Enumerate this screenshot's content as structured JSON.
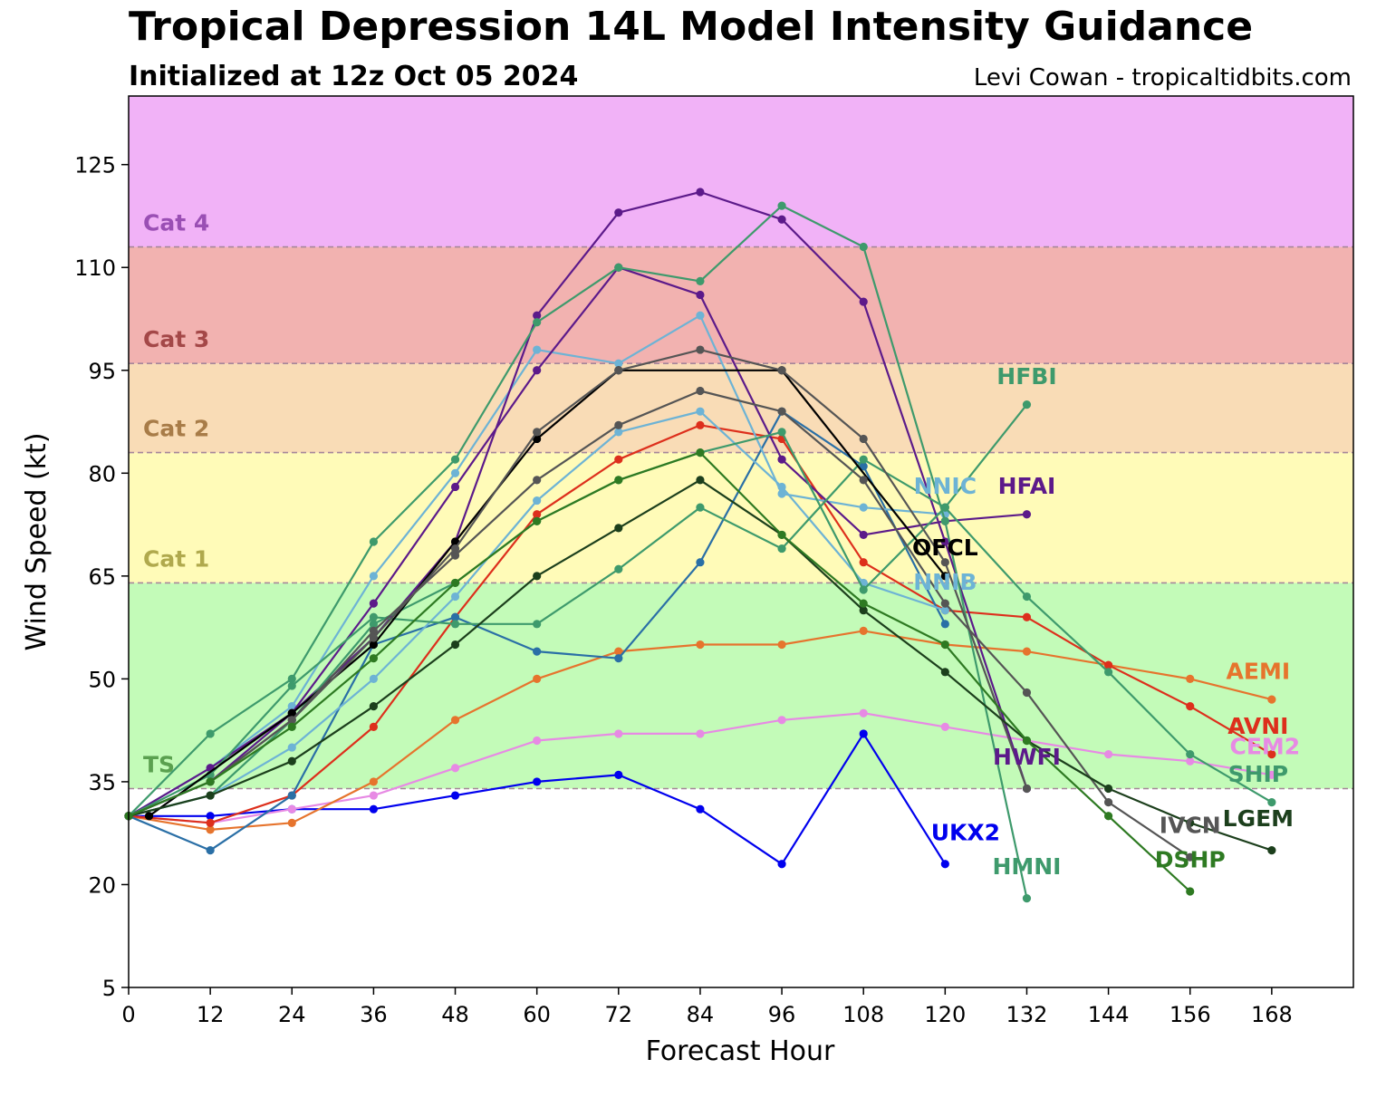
{
  "header": {
    "title": "Tropical Depression 14L Model Intensity Guidance",
    "subtitle": "Initialized at 12z Oct 05 2024",
    "credit": "Levi Cowan - tropicaltidbits.com"
  },
  "chart_data": {
    "type": "line",
    "title": "Tropical Depression 14L Model Intensity Guidance",
    "subtitle": "Initialized at 12z Oct 05 2024",
    "xlabel": "Forecast Hour",
    "ylabel": "Wind Speed (kt)",
    "xlim": [
      0,
      180
    ],
    "ylim": [
      5,
      135
    ],
    "xticks": [
      0,
      12,
      24,
      36,
      48,
      60,
      72,
      84,
      96,
      108,
      120,
      132,
      144,
      156,
      168
    ],
    "yticks": [
      5,
      20,
      35,
      50,
      65,
      80,
      95,
      110,
      125
    ],
    "grid": false,
    "bands": [
      {
        "label": "",
        "from": 5,
        "to": 34,
        "color": "#ffffff",
        "label_color": "#000000"
      },
      {
        "label": "TS",
        "from": 34,
        "to": 64,
        "color": "#c3fbb8",
        "label_color": "#5aa04f"
      },
      {
        "label": "Cat 1",
        "from": 64,
        "to": 83,
        "color": "#fffbb8",
        "label_color": "#b0a94d"
      },
      {
        "label": "Cat 2",
        "from": 83,
        "to": 96,
        "color": "#f9dcb6",
        "label_color": "#a87c48"
      },
      {
        "label": "Cat 3",
        "from": 96,
        "to": 113,
        "color": "#f2b2b0",
        "label_color": "#a44848"
      },
      {
        "label": "Cat 4",
        "from": 113,
        "to": 135,
        "color": "#f1b2f7",
        "label_color": "#9a4fb4"
      }
    ],
    "series": [
      {
        "name": "UKX2",
        "color": "#0000ee",
        "label_at": [
          123,
          26.5
        ],
        "x": [
          0,
          12,
          24,
          36,
          48,
          60,
          72,
          84,
          96,
          108,
          120
        ],
        "y": [
          30,
          30,
          31,
          31,
          33,
          35,
          36,
          31,
          23,
          42,
          23
        ]
      },
      {
        "name": "CEM2",
        "color": "#e78ae4",
        "label_at": [
          167,
          39
        ],
        "x": [
          0,
          12,
          24,
          36,
          48,
          60,
          72,
          84,
          96,
          108,
          120,
          144,
          156,
          168
        ],
        "y": [
          30,
          29,
          31,
          33,
          37,
          41,
          42,
          42,
          44,
          45,
          43,
          39,
          38,
          36
        ]
      },
      {
        "name": "AEMI",
        "color": "#e6742d",
        "label_at": [
          166,
          50
        ],
        "x": [
          0,
          12,
          24,
          36,
          48,
          60,
          72,
          84,
          96,
          108,
          120,
          132,
          144,
          156,
          168
        ],
        "y": [
          30,
          28,
          29,
          35,
          44,
          50,
          54,
          55,
          55,
          57,
          55,
          54,
          52,
          50,
          47
        ]
      },
      {
        "name": "AVNI",
        "color": "#dd2f1c",
        "label_at": [
          166,
          42
        ],
        "x": [
          0,
          12,
          24,
          36,
          48,
          60,
          72,
          84,
          96,
          108,
          120,
          132,
          144,
          156,
          168
        ],
        "y": [
          30,
          29,
          33,
          43,
          59,
          74,
          82,
          87,
          85,
          67,
          60,
          59,
          52,
          46,
          39
        ]
      },
      {
        "name": "",
        "color": "#2a6fa6",
        "x": [
          0,
          12,
          24,
          36,
          48,
          60,
          72,
          84,
          96,
          108,
          120
        ],
        "y": [
          30,
          25,
          33,
          55,
          59,
          54,
          53,
          67,
          89,
          81,
          58
        ]
      },
      {
        "name": "NNIC",
        "color": "#6db3d5",
        "label_at": [
          120,
          77
        ],
        "x": [
          0,
          12,
          24,
          36,
          48,
          60,
          72,
          84,
          96,
          108,
          120
        ],
        "y": [
          30,
          37,
          46,
          65,
          80,
          98,
          96,
          103,
          77,
          75,
          74
        ]
      },
      {
        "name": "NNIB",
        "color": "#6db3d5",
        "label_at": [
          120,
          63
        ],
        "x": [
          0,
          12,
          24,
          36,
          48,
          60,
          72,
          84,
          96,
          108,
          120
        ],
        "y": [
          30,
          33,
          40,
          50,
          62,
          76,
          86,
          89,
          78,
          64,
          60
        ]
      },
      {
        "name": "HFAI",
        "color": "#5c1a8a",
        "label_at": [
          132,
          77
        ],
        "x": [
          0,
          12,
          24,
          36,
          48,
          60,
          72,
          84,
          96,
          108,
          120,
          132
        ],
        "y": [
          30,
          37,
          45,
          61,
          78,
          95,
          110,
          106,
          82,
          71,
          73,
          74
        ]
      },
      {
        "name": "HWFI",
        "color": "#5c1a8a",
        "label_at": [
          132,
          37.5
        ],
        "x": [
          0,
          12,
          24,
          36,
          48,
          60,
          72,
          84,
          96,
          108,
          120,
          132
        ],
        "y": [
          30,
          35,
          45,
          56,
          70,
          103,
          118,
          121,
          117,
          105,
          70,
          34
        ]
      },
      {
        "name": "HFBI",
        "color": "#3e9a6c",
        "label_at": [
          132,
          93
        ],
        "x": [
          0,
          12,
          24,
          36,
          48,
          60,
          72,
          84,
          96,
          108,
          120,
          132
        ],
        "y": [
          30,
          33,
          44,
          58,
          64,
          73,
          79,
          83,
          86,
          63,
          75,
          90
        ]
      },
      {
        "name": "HMNI",
        "color": "#3e9a6c",
        "label_at": [
          132,
          21.5
        ],
        "x": [
          0,
          12,
          24,
          36,
          48,
          60,
          72,
          84,
          96,
          108,
          120,
          132
        ],
        "y": [
          30,
          42,
          50,
          70,
          82,
          102,
          110,
          108,
          119,
          113,
          73,
          18
        ]
      },
      {
        "name": "SHIP",
        "color": "#3e9a6c",
        "label_at": [
          166,
          35
        ]
      },
      {
        "name": "",
        "color": "#3e9a6c",
        "x": [
          0,
          12,
          24,
          36,
          48,
          60,
          72,
          84,
          96,
          108,
          120,
          132,
          144,
          156,
          168
        ],
        "y": [
          30,
          36,
          49,
          59,
          58,
          58,
          66,
          75,
          69,
          82,
          75,
          62,
          51,
          39,
          32
        ]
      },
      {
        "name": "OFCL",
        "color": "#000000",
        "label_at": [
          120,
          68
        ],
        "x": [
          3,
          24,
          36,
          48,
          60,
          72,
          96,
          120
        ],
        "y": [
          30,
          45,
          55,
          70,
          85,
          95,
          95,
          65
        ]
      },
      {
        "name": "IVCN",
        "color": "#555555",
        "label_at": [
          156,
          27.5
        ],
        "x": [
          0,
          12,
          24,
          36,
          48,
          60,
          72,
          84,
          96,
          108,
          120,
          132,
          144,
          156
        ],
        "y": [
          30,
          35,
          44,
          57,
          68,
          79,
          87,
          92,
          89,
          79,
          61,
          48,
          32,
          24
        ]
      },
      {
        "name": "",
        "color": "#555555",
        "x": [
          0,
          12,
          24,
          36,
          48,
          60,
          72,
          84,
          96,
          108,
          120,
          132
        ],
        "y": [
          30,
          35,
          44,
          56,
          69,
          86,
          95,
          98,
          95,
          85,
          67,
          34
        ]
      },
      {
        "name": "LGEM",
        "color": "#1c3f1c",
        "label_at": [
          166,
          28.5
        ],
        "x": [
          0,
          12,
          24,
          36,
          48,
          60,
          72,
          84,
          96,
          108,
          120,
          132,
          144,
          156,
          168
        ],
        "y": [
          30,
          33,
          38,
          46,
          55,
          65,
          72,
          79,
          71,
          60,
          51,
          41,
          34,
          29,
          25
        ]
      },
      {
        "name": "DSHP",
        "color": "#2e7a22",
        "label_at": [
          156,
          22.5
        ],
        "x": [
          0,
          12,
          24,
          36,
          48,
          60,
          72,
          84,
          96,
          108,
          120,
          132,
          144,
          156
        ],
        "y": [
          30,
          35,
          43,
          53,
          64,
          73,
          79,
          83,
          71,
          61,
          55,
          41,
          30,
          19
        ]
      }
    ]
  }
}
